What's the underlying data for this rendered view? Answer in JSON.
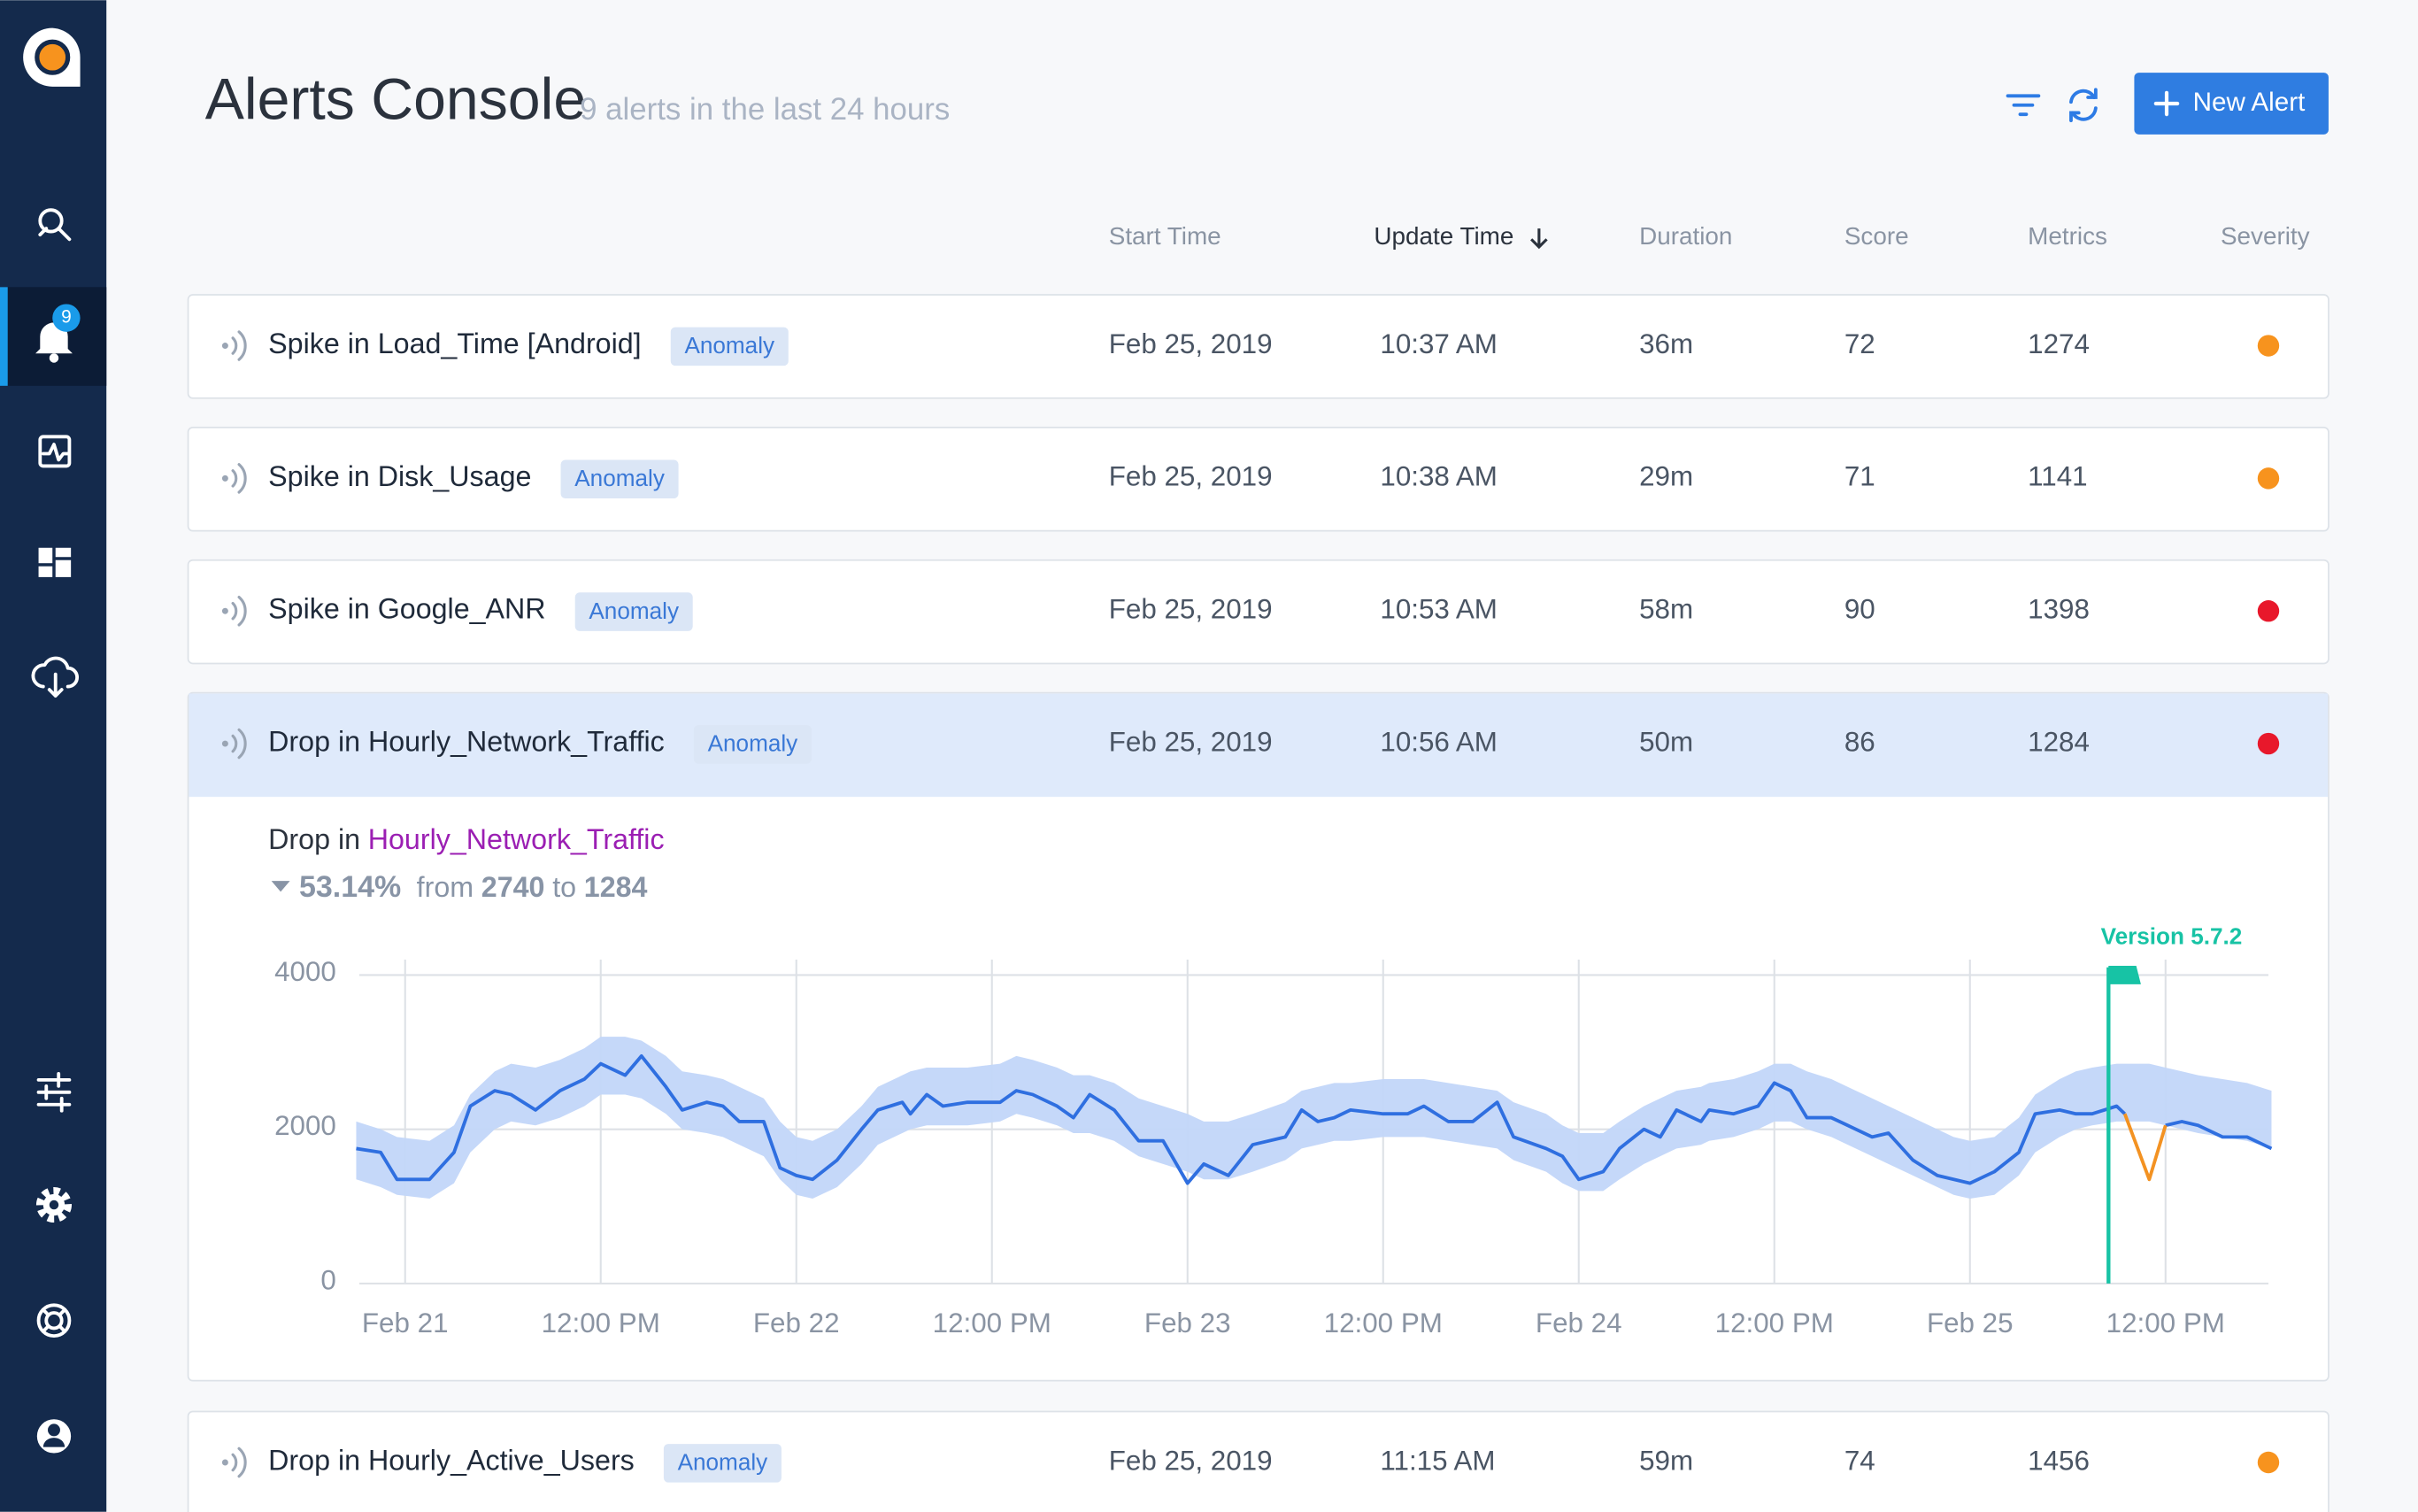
{
  "nav": {
    "badge": 9
  },
  "header": {
    "title": "Alerts Console",
    "subtitle": "9 alerts in the last 24 hours",
    "button": "New Alert"
  },
  "columns": [
    "Start Time",
    "Update Time",
    "Duration",
    "Score",
    "Metrics",
    "Severity"
  ],
  "rows": [
    {
      "title": "Spike in Load_Time [Android]",
      "tag": "Anomaly",
      "start": "Feb 25, 2019",
      "update": "10:37 AM",
      "duration": "36m",
      "score": 72,
      "metrics": 1274,
      "severity_color": "#f7931e"
    },
    {
      "title": "Spike in Disk_Usage",
      "tag": "Anomaly",
      "start": "Feb 25, 2019",
      "update": "10:38 AM",
      "duration": "29m",
      "score": 71,
      "metrics": 1141,
      "severity_color": "#f7931e"
    },
    {
      "title": "Spike in Google_ANR",
      "tag": "Anomaly",
      "start": "Feb 25, 2019",
      "update": "10:53 AM",
      "duration": "58m",
      "score": 90,
      "metrics": 1398,
      "severity_color": "#e8182b"
    },
    {
      "title": "Drop in Hourly_Network_Traffic",
      "tag": "Anomaly",
      "start": "Feb 25, 2019",
      "update": "10:56 AM",
      "duration": "50m",
      "score": 86,
      "metrics": 1284,
      "severity_color": "#e8182b"
    },
    {
      "title": "Drop in Hourly_Active_Users",
      "tag": "Anomaly",
      "start": "Feb 25, 2019",
      "update": "11:15 AM",
      "duration": "59m",
      "score": 74,
      "metrics": 1456,
      "severity_color": "#f7931e"
    }
  ],
  "detail": {
    "direction": "Drop in",
    "metric": "Hourly_Network_Traffic",
    "change": "53.14%",
    "from_word": "from",
    "from": 2740,
    "to_word": "to",
    "to": 1284
  },
  "chart_data": {
    "type": "line",
    "x": [
      -3,
      -1.5,
      -0.5,
      1.5,
      3,
      4,
      5.5,
      6.5,
      8,
      9.5,
      11,
      12,
      13.5,
      14.5,
      16,
      17,
      18.5,
      19.5,
      20.5,
      22,
      23,
      24,
      25,
      26.5,
      28,
      29,
      30.5,
      31,
      32,
      33,
      34.5,
      36.5,
      37.5,
      38.5,
      40,
      41,
      42,
      43.5,
      45,
      46.5,
      48,
      49,
      50.5,
      52,
      54,
      55,
      56,
      57,
      58,
      60,
      61.5,
      62.5,
      64,
      65.5,
      67,
      68,
      70,
      71,
      72,
      73.5,
      74.5,
      76,
      77,
      78,
      79.5,
      80,
      81.5,
      83,
      84,
      85,
      86,
      87.5,
      88.5,
      90,
      91,
      92.5,
      94,
      95,
      96,
      97.5,
      99,
      100,
      101.5,
      102.5,
      103.5,
      105,
      105.5,
      107,
      108,
      109,
      110,
      111.5,
      113,
      114.5
    ],
    "series": [
      {
        "color": "#2f6fe0",
        "values": [
          1750,
          1700,
          1350,
          1350,
          1700,
          2300,
          2500,
          2450,
          2250,
          2500,
          2650,
          2850,
          2700,
          2950,
          2550,
          2250,
          2350,
          2300,
          2100,
          2100,
          1500,
          1400,
          1350,
          1600,
          2000,
          2250,
          2350,
          2200,
          2450,
          2300,
          2350,
          2350,
          2500,
          2450,
          2300,
          2150,
          2450,
          2250,
          1850,
          1850,
          1300,
          1550,
          1400,
          1800,
          1900,
          2250,
          2100,
          2150,
          2250,
          2200,
          2200,
          2300,
          2100,
          2100,
          2350,
          1900,
          1750,
          1650,
          1350,
          1450,
          1750,
          2000,
          1900,
          2250,
          2100,
          2250,
          2200,
          2300,
          2600,
          2500,
          2150,
          2150,
          2050,
          1900,
          1950,
          1600,
          1400,
          1350,
          1300,
          1450,
          1700,
          2200,
          2250,
          2200,
          2200,
          2300,
          2200,
          null,
          2050,
          2100,
          2050,
          1900,
          1900,
          1750
        ]
      },
      {
        "color": "#f39222",
        "x": [
          105.5,
          107,
          108
        ],
        "values": [
          2200,
          1350,
          2050
        ]
      }
    ],
    "band": {
      "color": "#c2d6f9",
      "upper": [
        2100,
        2000,
        1900,
        1850,
        2050,
        2450,
        2750,
        2850,
        2800,
        2900,
        3050,
        3200,
        3200,
        3150,
        2950,
        2750,
        2700,
        2650,
        2550,
        2400,
        2100,
        1900,
        1850,
        2000,
        2300,
        2550,
        2700,
        2750,
        2800,
        2800,
        2800,
        2850,
        2950,
        2900,
        2800,
        2700,
        2700,
        2600,
        2400,
        2300,
        2200,
        2100,
        2100,
        2200,
        2350,
        2500,
        2550,
        2600,
        2600,
        2650,
        2650,
        2650,
        2600,
        2550,
        2500,
        2350,
        2200,
        2050,
        1950,
        1950,
        2100,
        2300,
        2400,
        2500,
        2550,
        2600,
        2650,
        2750,
        2850,
        2850,
        2750,
        2650,
        2550,
        2400,
        2300,
        2150,
        2000,
        1900,
        1850,
        1900,
        2150,
        2450,
        2650,
        2750,
        2800,
        2850,
        2850,
        2850,
        2800,
        2750,
        2700,
        2650,
        2600,
        2500
      ],
      "lower": [
        1350,
        1250,
        1150,
        1100,
        1300,
        1700,
        2000,
        2100,
        2050,
        2150,
        2300,
        2450,
        2450,
        2400,
        2200,
        2000,
        1950,
        1900,
        1800,
        1650,
        1350,
        1150,
        1100,
        1250,
        1550,
        1800,
        1950,
        2000,
        2050,
        2050,
        2050,
        2100,
        2200,
        2150,
        2050,
        1950,
        1950,
        1850,
        1650,
        1550,
        1450,
        1350,
        1350,
        1450,
        1600,
        1750,
        1800,
        1850,
        1850,
        1900,
        1900,
        1900,
        1850,
        1800,
        1750,
        1600,
        1450,
        1300,
        1200,
        1200,
        1350,
        1550,
        1650,
        1750,
        1800,
        1850,
        1900,
        2000,
        2100,
        2100,
        2000,
        1900,
        1800,
        1650,
        1550,
        1400,
        1250,
        1150,
        1100,
        1150,
        1400,
        1700,
        1900,
        2000,
        2050,
        2100,
        2100,
        2100,
        2050,
        2000,
        1950,
        1900,
        1850,
        1750
      ]
    },
    "xlim": [
      -3,
      114.5
    ],
    "xticks": [
      {
        "value": 0,
        "label": "Feb 21"
      },
      {
        "value": 12,
        "label": "12:00 PM"
      },
      {
        "value": 24,
        "label": "Feb 22"
      },
      {
        "value": 36,
        "label": "12:00 PM"
      },
      {
        "value": 48,
        "label": "Feb 23"
      },
      {
        "value": 60,
        "label": "12:00 PM"
      },
      {
        "value": 72,
        "label": "Feb 24"
      },
      {
        "value": 84,
        "label": "12:00 PM"
      },
      {
        "value": 96,
        "label": "Feb 25"
      },
      {
        "value": 108,
        "label": "12:00 PM"
      }
    ],
    "ylim": [
      0,
      4000
    ],
    "yticks": [
      0,
      2000,
      4000
    ],
    "grid": true,
    "annotation": {
      "text": "Version 5.7.2",
      "x": 104.5,
      "color": "#17c3a5"
    }
  }
}
